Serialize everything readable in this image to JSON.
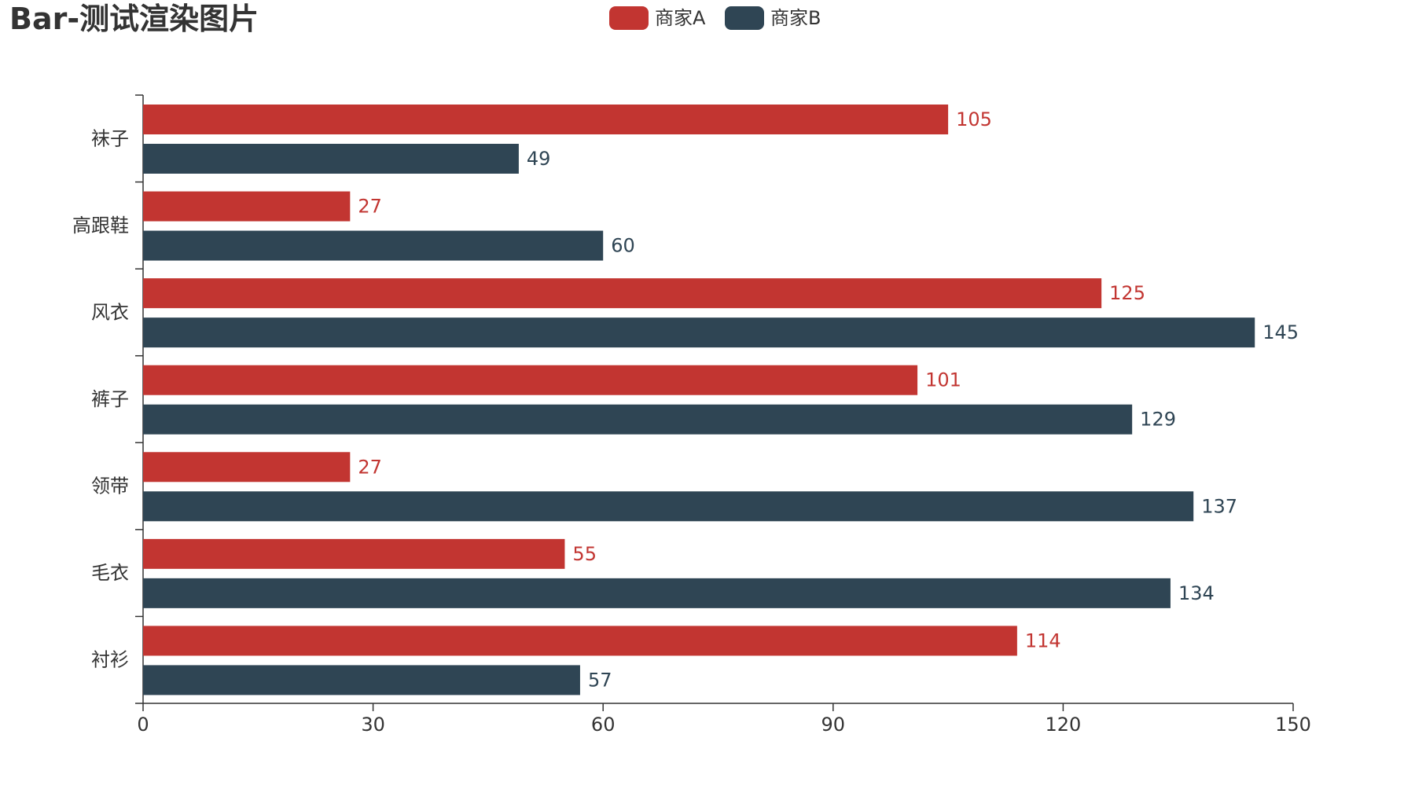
{
  "chart_data": {
    "type": "bar",
    "orientation": "horizontal",
    "title": "Bar-测试渲染图片",
    "categories": [
      "衬衫",
      "毛衣",
      "领带",
      "裤子",
      "风衣",
      "高跟鞋",
      "袜子"
    ],
    "series": [
      {
        "name": "商家A",
        "color": "#c23531",
        "values": [
          114,
          55,
          27,
          101,
          125,
          27,
          105
        ]
      },
      {
        "name": "商家B",
        "color": "#2f4554",
        "values": [
          57,
          134,
          137,
          129,
          145,
          60,
          49
        ]
      }
    ],
    "xlim": [
      0,
      150
    ],
    "x_ticks": [
      0,
      30,
      60,
      90,
      120,
      150
    ],
    "xlabel": "",
    "ylabel": "",
    "grid": false,
    "legend": "top-center"
  }
}
